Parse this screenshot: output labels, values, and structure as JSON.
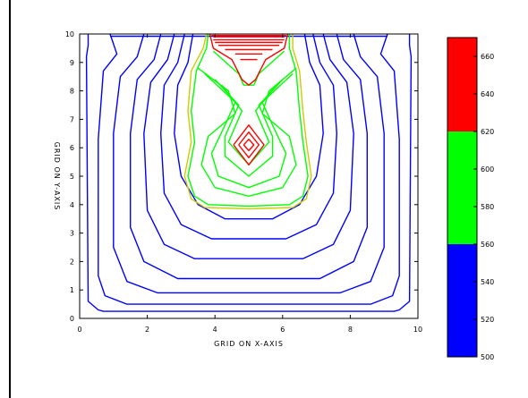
{
  "chart_data": {
    "type": "contour",
    "xlabel": "GRID ON X-AXIS",
    "ylabel": "GRID ON Y-AXIS",
    "xlim": [
      0,
      10
    ],
    "ylim": [
      0,
      10
    ],
    "xticks": [
      "0",
      "2",
      "4",
      "6",
      "8",
      "10"
    ],
    "yticks": [
      "0",
      "1",
      "2",
      "3",
      "4",
      "5",
      "6",
      "7",
      "8",
      "9",
      "10"
    ],
    "colorbar": {
      "range": [
        500,
        670
      ],
      "tick_values": [
        500,
        520,
        540,
        560,
        580,
        600,
        620,
        640,
        660
      ],
      "tick_labels": [
        "500",
        "520",
        "540",
        "560",
        "580",
        "600",
        "620",
        "640",
        "660"
      ],
      "bands": [
        {
          "from": 500,
          "to": 560,
          "color": "#0000ff"
        },
        {
          "from": 560,
          "to": 620,
          "color": "#00ff00"
        },
        {
          "from": 620,
          "to": 670,
          "color": "#ff0000"
        }
      ]
    },
    "contours": {
      "blue": {
        "color": "#0000ff",
        "levels": [
          [
            [
              0.25,
              10
            ],
            [
              0.25,
              9.6
            ],
            [
              0.2,
              9.2
            ],
            [
              0.25,
              0.6
            ],
            [
              0.55,
              0.3
            ],
            [
              0.7,
              0.25
            ],
            [
              9.3,
              0.25
            ],
            [
              9.45,
              0.3
            ],
            [
              9.75,
              0.6
            ],
            [
              9.8,
              9.2
            ],
            [
              9.75,
              9.6
            ],
            [
              9.75,
              10
            ]
          ],
          [
            [
              0.9,
              10
            ],
            [
              1.1,
              9.3
            ],
            [
              0.7,
              8.7
            ],
            [
              0.55,
              6.3
            ],
            [
              0.55,
              1.5
            ],
            [
              0.75,
              0.8
            ],
            [
              1.4,
              0.5
            ],
            [
              8.6,
              0.5
            ],
            [
              9.25,
              0.8
            ],
            [
              9.45,
              1.5
            ],
            [
              9.45,
              6.3
            ],
            [
              9.3,
              8.7
            ],
            [
              8.9,
              9.3
            ],
            [
              9.1,
              10
            ]
          ],
          [
            [
              1.9,
              10
            ],
            [
              1.7,
              9.2
            ],
            [
              1.2,
              8.5
            ],
            [
              1.0,
              6.5
            ],
            [
              1.0,
              2.5
            ],
            [
              1.4,
              1.3
            ],
            [
              2.3,
              0.9
            ],
            [
              7.7,
              0.9
            ],
            [
              8.6,
              1.3
            ],
            [
              9.0,
              2.5
            ],
            [
              9.0,
              6.5
            ],
            [
              8.8,
              8.5
            ],
            [
              8.3,
              9.2
            ],
            [
              8.1,
              10
            ]
          ],
          [
            [
              2.4,
              10
            ],
            [
              2.2,
              9.1
            ],
            [
              1.7,
              8.4
            ],
            [
              1.5,
              6.5
            ],
            [
              1.5,
              3.2
            ],
            [
              1.9,
              2.0
            ],
            [
              2.9,
              1.4
            ],
            [
              7.1,
              1.4
            ],
            [
              8.1,
              2.0
            ],
            [
              8.5,
              3.2
            ],
            [
              8.5,
              6.5
            ],
            [
              8.3,
              8.4
            ],
            [
              7.8,
              9.1
            ],
            [
              7.6,
              10
            ]
          ],
          [
            [
              2.8,
              10
            ],
            [
              2.6,
              9.1
            ],
            [
              2.1,
              8.3
            ],
            [
              1.9,
              6.5
            ],
            [
              2.0,
              3.8
            ],
            [
              2.5,
              2.6
            ],
            [
              3.4,
              2.1
            ],
            [
              6.6,
              2.1
            ],
            [
              7.5,
              2.6
            ],
            [
              8.0,
              3.8
            ],
            [
              8.1,
              6.5
            ],
            [
              7.9,
              8.3
            ],
            [
              7.4,
              9.1
            ],
            [
              7.2,
              10
            ]
          ],
          [
            [
              3.1,
              10
            ],
            [
              2.9,
              9.0
            ],
            [
              2.5,
              8.2
            ],
            [
              2.4,
              6.5
            ],
            [
              2.5,
              4.4
            ],
            [
              3.0,
              3.3
            ],
            [
              3.9,
              2.8
            ],
            [
              6.1,
              2.8
            ],
            [
              7.0,
              3.3
            ],
            [
              7.5,
              4.4
            ],
            [
              7.6,
              6.5
            ],
            [
              7.5,
              8.2
            ],
            [
              7.1,
              9.0
            ],
            [
              6.9,
              10
            ]
          ],
          [
            [
              3.35,
              10
            ],
            [
              3.2,
              9.0
            ],
            [
              2.9,
              8.2
            ],
            [
              2.8,
              6.5
            ],
            [
              3.0,
              5.0
            ],
            [
              3.5,
              4.0
            ],
            [
              4.3,
              3.5
            ],
            [
              5.7,
              3.5
            ],
            [
              6.5,
              4.0
            ],
            [
              7.0,
              5.0
            ],
            [
              7.2,
              6.5
            ],
            [
              7.1,
              8.2
            ],
            [
              6.8,
              9.0
            ],
            [
              6.65,
              10
            ]
          ],
          [
            [
              0.9,
              9.92
            ],
            [
              9.1,
              9.92
            ]
          ]
        ]
      },
      "yellow": {
        "color": "#cccc00",
        "levels": [
          [
            [
              3.75,
              10
            ],
            [
              3.65,
              9.5
            ],
            [
              3.3,
              8.7
            ],
            [
              3.2,
              7.3
            ],
            [
              3.3,
              6.2
            ],
            [
              3.1,
              5.0
            ],
            [
              3.3,
              4.2
            ],
            [
              3.7,
              3.9
            ],
            [
              5.0,
              3.85
            ],
            [
              6.3,
              3.9
            ],
            [
              6.7,
              4.2
            ],
            [
              6.85,
              5.0
            ],
            [
              6.7,
              6.2
            ],
            [
              6.6,
              7.3
            ],
            [
              6.5,
              8.7
            ],
            [
              6.3,
              9.5
            ],
            [
              6.3,
              10
            ]
          ]
        ]
      },
      "green": {
        "color": "#00ff00",
        "levels": [
          [
            [
              3.8,
              10
            ],
            [
              3.75,
              9.5
            ],
            [
              3.45,
              8.7
            ],
            [
              3.3,
              7.3
            ],
            [
              3.4,
              6.2
            ],
            [
              3.2,
              5.0
            ],
            [
              3.4,
              4.3
            ],
            [
              3.8,
              4.0
            ],
            [
              5.0,
              3.95
            ],
            [
              6.2,
              4.0
            ],
            [
              6.6,
              4.3
            ],
            [
              6.75,
              5.0
            ],
            [
              6.6,
              6.2
            ],
            [
              6.5,
              7.3
            ],
            [
              6.4,
              8.7
            ],
            [
              6.2,
              9.5
            ],
            [
              6.2,
              10
            ]
          ],
          [
            [
              3.5,
              8.8
            ],
            [
              4.4,
              8.0
            ],
            [
              4.6,
              7.2
            ],
            [
              3.8,
              6.4
            ],
            [
              3.6,
              5.4
            ],
            [
              4.0,
              4.6
            ],
            [
              5.0,
              4.3
            ],
            [
              6.0,
              4.6
            ],
            [
              6.4,
              5.4
            ],
            [
              6.2,
              6.4
            ],
            [
              5.4,
              7.2
            ],
            [
              5.6,
              8.0
            ],
            [
              6.4,
              8.8
            ]
          ],
          [
            [
              3.7,
              8.6
            ],
            [
              4.6,
              7.6
            ],
            [
              4.3,
              6.8
            ],
            [
              3.9,
              5.8
            ],
            [
              4.1,
              5.0
            ],
            [
              5.0,
              4.6
            ],
            [
              5.9,
              5.0
            ],
            [
              6.1,
              5.8
            ],
            [
              5.7,
              6.8
            ],
            [
              5.4,
              7.6
            ],
            [
              6.3,
              8.6
            ]
          ],
          [
            [
              4.0,
              8.4
            ],
            [
              4.7,
              7.5
            ],
            [
              4.3,
              6.4
            ],
            [
              4.3,
              5.7
            ],
            [
              5.0,
              5.0
            ],
            [
              5.7,
              5.7
            ],
            [
              5.7,
              6.4
            ],
            [
              5.3,
              7.5
            ],
            [
              6.0,
              8.4
            ]
          ],
          [
            [
              4.2,
              8.2
            ],
            [
              4.8,
              7.3
            ],
            [
              4.4,
              6.2
            ],
            [
              5.0,
              5.4
            ],
            [
              5.6,
              6.2
            ],
            [
              5.2,
              7.3
            ],
            [
              5.8,
              8.2
            ]
          ],
          [
            [
              3.95,
              9.4
            ],
            [
              4.7,
              8.6
            ],
            [
              4.85,
              8.2
            ],
            [
              5.15,
              8.2
            ],
            [
              5.3,
              8.6
            ],
            [
              6.05,
              9.4
            ]
          ]
        ]
      },
      "red": {
        "color": "#ff0000",
        "levels": [
          [
            [
              3.85,
              10
            ],
            [
              3.95,
              9.5
            ],
            [
              4.5,
              9.1
            ],
            [
              4.8,
              8.4
            ],
            [
              5.0,
              8.2
            ],
            [
              5.2,
              8.4
            ],
            [
              5.5,
              9.1
            ],
            [
              6.05,
              9.5
            ],
            [
              6.15,
              10
            ]
          ],
          [
            [
              3.9,
              9.95
            ],
            [
              6.1,
              9.95
            ]
          ],
          [
            [
              3.95,
              9.9
            ],
            [
              6.05,
              9.9
            ]
          ],
          [
            [
              3.95,
              9.8
            ],
            [
              6.05,
              9.8
            ]
          ],
          [
            [
              4.0,
              9.7
            ],
            [
              6.0,
              9.7
            ]
          ],
          [
            [
              4.1,
              9.6
            ],
            [
              5.9,
              9.6
            ]
          ],
          [
            [
              4.3,
              9.45
            ],
            [
              5.7,
              9.45
            ]
          ],
          [
            [
              4.6,
              9.3
            ],
            [
              5.4,
              9.3
            ]
          ],
          [
            [
              4.75,
              9.1
            ],
            [
              5.25,
              9.1
            ]
          ],
          [
            [
              4.55,
              6.1
            ],
            [
              5.0,
              6.8
            ],
            [
              5.45,
              6.1
            ],
            [
              5.0,
              5.4
            ],
            [
              4.55,
              6.1
            ]
          ],
          [
            [
              4.7,
              6.1
            ],
            [
              5.0,
              6.55
            ],
            [
              5.3,
              6.1
            ],
            [
              5.0,
              5.65
            ],
            [
              4.7,
              6.1
            ]
          ],
          [
            [
              4.85,
              6.1
            ],
            [
              5.0,
              6.3
            ],
            [
              5.15,
              6.1
            ],
            [
              5.0,
              5.9
            ],
            [
              4.85,
              6.1
            ]
          ]
        ]
      }
    }
  }
}
